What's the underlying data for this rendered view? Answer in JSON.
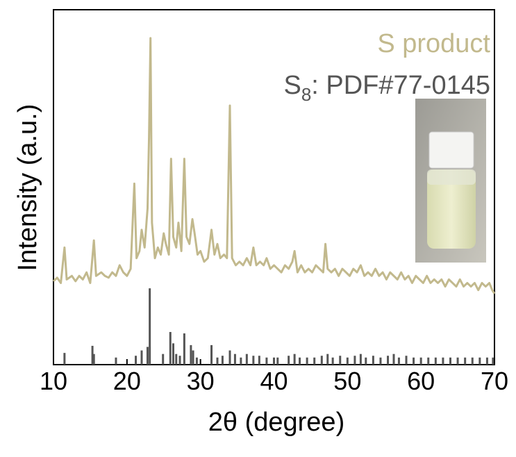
{
  "chart_data": {
    "type": "line",
    "x_label": "2θ (degree)",
    "y_label": "Intensity (a.u.)",
    "xlim": [
      10,
      70
    ],
    "xticks": [
      10,
      20,
      30,
      40,
      50,
      60,
      70
    ],
    "ylim": [
      0,
      100
    ],
    "legend": "top-right",
    "series": [
      {
        "name": "S product",
        "type": "line",
        "color": "#c2b98d",
        "x": [
          10,
          10.5,
          11,
          11.5,
          11.8,
          12.5,
          13,
          13.5,
          14,
          14.5,
          15,
          15.5,
          15.8,
          16.5,
          17,
          17.5,
          18,
          18.5,
          19,
          19.5,
          20,
          20.5,
          21,
          21.3,
          21.7,
          22,
          22.4,
          22.8,
          23.0,
          23.2,
          23.4,
          23.8,
          24.2,
          24.6,
          25,
          25.3,
          25.7,
          26,
          26.3,
          26.7,
          27,
          27.4,
          27.8,
          28.1,
          28.5,
          28.9,
          29.2,
          29.6,
          30,
          30.5,
          31,
          31.5,
          31.9,
          32.3,
          32.7,
          33.2,
          33.6,
          34,
          34.3,
          34.8,
          35.3,
          35.8,
          36.3,
          36.8,
          37.2,
          37.6,
          38.1,
          38.6,
          39,
          39.5,
          40,
          40.5,
          41,
          41.5,
          42,
          42.5,
          42.8,
          43.2,
          43.7,
          44.2,
          44.7,
          45.2,
          45.7,
          46.2,
          46.7,
          47,
          47.3,
          47.8,
          48.3,
          48.8,
          49.3,
          49.8,
          50.3,
          50.8,
          51.3,
          51.8,
          52.3,
          52.8,
          53.3,
          53.8,
          54.3,
          54.8,
          55.3,
          55.8,
          56.3,
          56.8,
          57.3,
          57.8,
          58.3,
          58.8,
          59.3,
          59.8,
          60.3,
          60.8,
          61.3,
          61.8,
          62.3,
          62.8,
          63.3,
          63.8,
          64.3,
          64.8,
          65.3,
          65.8,
          66.3,
          66.8,
          67.3,
          67.8,
          68.3,
          68.8,
          69.3,
          69.7,
          70
        ],
        "values": [
          23.5,
          24.5,
          23,
          33,
          24,
          25,
          23.5,
          25,
          24,
          26,
          23,
          35,
          25,
          26,
          25,
          24.5,
          26,
          25,
          28,
          26,
          25,
          27,
          51,
          30,
          32,
          38,
          33,
          44,
          64,
          92,
          40,
          30,
          33,
          31,
          37,
          34,
          31,
          58,
          36,
          33,
          40,
          32,
          58,
          36,
          34,
          41,
          37,
          31,
          32,
          29,
          30,
          38,
          31,
          34,
          30,
          31,
          30,
          73,
          30,
          28,
          29,
          28,
          30,
          28,
          33,
          28,
          29,
          28,
          30,
          27,
          28,
          27,
          26,
          28,
          27,
          29,
          32,
          26,
          28,
          26,
          27,
          26,
          28,
          27,
          26,
          34,
          27,
          26,
          27,
          25,
          27,
          26,
          25,
          27,
          26,
          28,
          25,
          26,
          25,
          27,
          25,
          26,
          24,
          26,
          25,
          24,
          26,
          24,
          25,
          23,
          25,
          24,
          23,
          25,
          23,
          24,
          23,
          24,
          22,
          24,
          23,
          22,
          24,
          22,
          23,
          22,
          23,
          21,
          23,
          22,
          23,
          21,
          20
        ]
      },
      {
        "name": "S8: PDF#77-0145",
        "type": "stick",
        "color": "#555555",
        "x": [
          11.5,
          15.3,
          15.5,
          18.5,
          21.2,
          22,
          22.8,
          23.1,
          24.9,
          25.9,
          26.3,
          26.7,
          27.2,
          27.8,
          28.7,
          29,
          29.5,
          31.5,
          32.3,
          33,
          34,
          34.7,
          35.5,
          36.3,
          37.2,
          38,
          39,
          40,
          40.5,
          42,
          42.8,
          43.5,
          44.5,
          45.5,
          46.5,
          47.3,
          48,
          49,
          50,
          51,
          51.8,
          52.5,
          53.5,
          54.5,
          55.5,
          56.3,
          57,
          58,
          59,
          60,
          61,
          62,
          63,
          64,
          65,
          66,
          67,
          68,
          69,
          69.8
        ],
        "values": [
          3.3,
          5.3,
          3,
          2,
          2.5,
          4,
          5,
          21.5,
          3,
          9.2,
          6,
          3,
          2.5,
          8.8,
          5.5,
          4,
          2,
          5.5,
          2,
          2.5,
          4,
          3,
          2,
          3,
          2.5,
          2.5,
          2,
          2,
          2,
          2.5,
          3,
          2,
          2,
          2,
          2.5,
          3,
          2,
          2.5,
          2,
          2.5,
          3,
          2,
          2.5,
          2,
          2.5,
          3,
          2,
          2.5,
          2,
          2,
          2,
          2,
          2,
          2,
          2,
          2,
          2,
          2,
          2,
          2
        ]
      }
    ]
  }
}
